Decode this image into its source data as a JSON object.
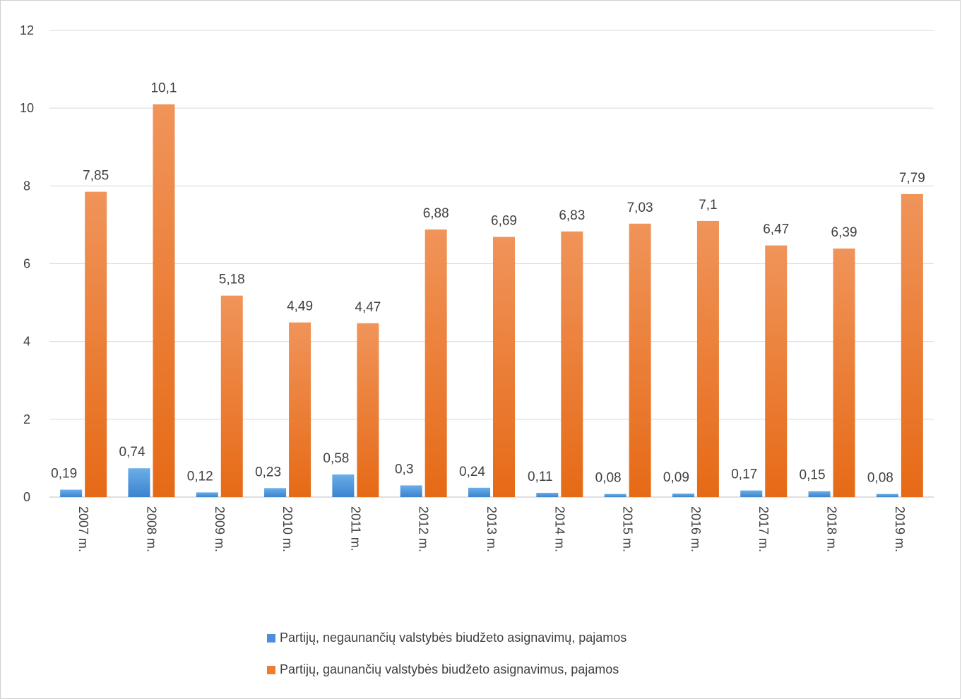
{
  "chart_data": {
    "type": "bar",
    "categories": [
      "2007 m.",
      "2008 m.",
      "2009 m.",
      "2010 m.",
      "2011 m.",
      "2012 m.",
      "2013 m.",
      "2014 m.",
      "2015 m.",
      "2016 m.",
      "2017 m.",
      "2018 m.",
      "2019 m."
    ],
    "series": [
      {
        "name": "Partijų, negaunančių valstybės biudžeto asignavimų, pajamos",
        "values": [
          0.19,
          0.74,
          0.12,
          0.23,
          0.58,
          0.3,
          0.24,
          0.11,
          0.08,
          0.09,
          0.17,
          0.15,
          0.08
        ],
        "labels": [
          "0,19",
          "0,74",
          "0,12",
          "0,23",
          "0,58",
          "0,3",
          "0,24",
          "0,11",
          "0,08",
          "0,09",
          "0,17",
          "0,15",
          "0,08"
        ],
        "color": "#4a90d9"
      },
      {
        "name": "Partijų, gaunančių valstybės biudžeto asignavimus, pajamos",
        "values": [
          7.85,
          10.1,
          5.18,
          4.49,
          4.47,
          6.88,
          6.69,
          6.83,
          7.03,
          7.1,
          6.47,
          6.39,
          7.79
        ],
        "labels": [
          "7,85",
          "10,1",
          "5,18",
          "4,49",
          "4,47",
          "6,88",
          "6,69",
          "6,83",
          "7,03",
          "7,1",
          "6,47",
          "6,39",
          "7,79"
        ],
        "color": "#ed7d31"
      }
    ],
    "y_ticks": [
      "0",
      "2",
      "4",
      "6",
      "8",
      "10",
      "12"
    ],
    "ylim": [
      0,
      12
    ],
    "grid": true,
    "legend_position": "bottom"
  }
}
